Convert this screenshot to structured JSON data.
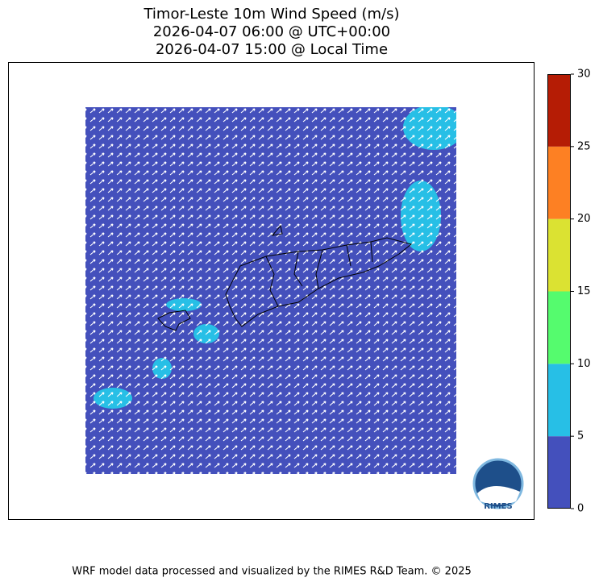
{
  "chart_data": {
    "type": "wind-map",
    "title": [
      "Timor-Leste 10m Wind Speed (m/s)",
      "2026-04-07 06:00 @ UTC+00:00",
      "2026-04-07 15:00 @ Local Time"
    ],
    "colorbar": {
      "bounds": [
        0,
        5,
        10,
        15,
        20,
        25,
        30
      ],
      "colors": [
        "#4450bc",
        "#27bfe6",
        "#55fb6e",
        "#dbe232",
        "#fd8023",
        "#b51c05"
      ],
      "ticks": [
        0,
        5,
        10,
        15,
        20,
        25,
        30
      ]
    },
    "logo_text": "RIMES",
    "footer": "WRF model data processed and visualized by the RIMES R&D Team. © 2025"
  }
}
